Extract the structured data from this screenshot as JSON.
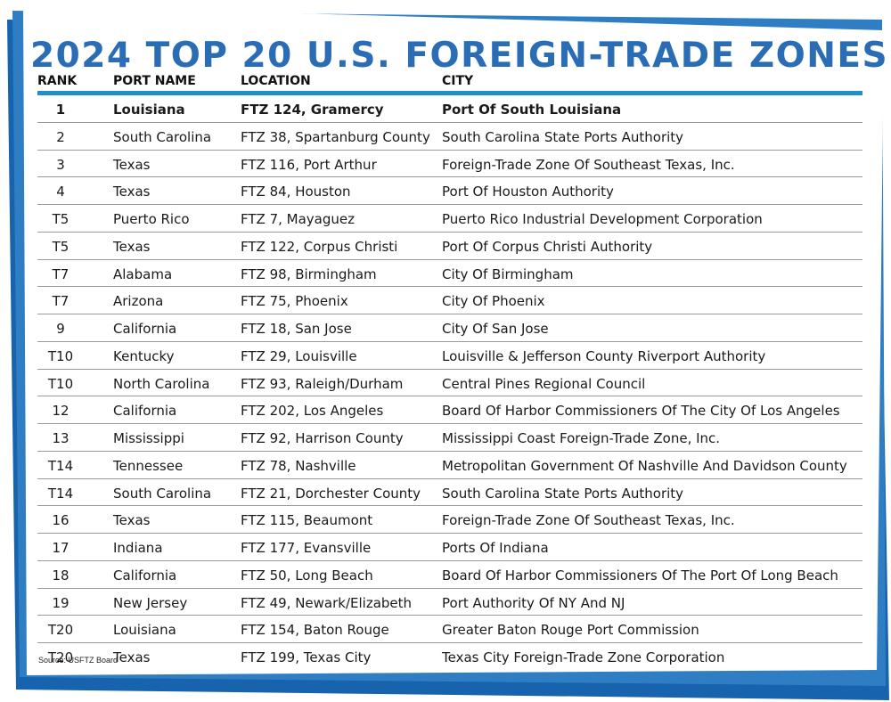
{
  "title": "2024 TOP 20 U.S. FOREIGN-TRADE ZONES",
  "colors": {
    "title": "#2a6db5",
    "frame_dark": "#1763ad",
    "frame_mid": "#2f7ec4",
    "header_rule": "#1f8fc4"
  },
  "table": {
    "headers": {
      "rank": "RANK",
      "port": "PORT NAME",
      "location": "LOCATION",
      "city": "CITY"
    },
    "rows": [
      {
        "rank": "1",
        "port": "Louisiana",
        "location": "FTZ 124, Gramercy",
        "city": "Port Of South Louisiana"
      },
      {
        "rank": "2",
        "port": "South Carolina",
        "location": "FTZ 38, Spartanburg County",
        "city": "South Carolina State Ports Authority"
      },
      {
        "rank": "3",
        "port": "Texas",
        "location": "FTZ 116, Port Arthur",
        "city": "Foreign-Trade Zone Of Southeast Texas, Inc."
      },
      {
        "rank": "4",
        "port": "Texas",
        "location": "FTZ 84, Houston",
        "city": "Port Of Houston Authority"
      },
      {
        "rank": "T5",
        "port": "Puerto Rico",
        "location": "FTZ 7, Mayaguez",
        "city": "Puerto Rico Industrial Development Corporation"
      },
      {
        "rank": "T5",
        "port": "Texas",
        "location": "FTZ 122, Corpus Christi",
        "city": "Port Of Corpus Christi Authority"
      },
      {
        "rank": "T7",
        "port": "Alabama",
        "location": "FTZ 98, Birmingham",
        "city": "City Of Birmingham"
      },
      {
        "rank": "T7",
        "port": "Arizona",
        "location": "FTZ 75, Phoenix",
        "city": "City Of Phoenix"
      },
      {
        "rank": "9",
        "port": "California",
        "location": "FTZ 18, San Jose",
        "city": "City Of San Jose"
      },
      {
        "rank": "T10",
        "port": "Kentucky",
        "location": "FTZ 29, Louisville",
        "city": "Louisville & Jefferson County Riverport Authority"
      },
      {
        "rank": "T10",
        "port": "North Carolina",
        "location": "FTZ 93, Raleigh/Durham",
        "city": "Central Pines Regional Council"
      },
      {
        "rank": "12",
        "port": "California",
        "location": "FTZ 202, Los Angeles",
        "city": "Board Of Harbor Commissioners Of The City Of Los Angeles"
      },
      {
        "rank": "13",
        "port": "Mississippi",
        "location": "FTZ 92, Harrison County",
        "city": "Mississippi Coast Foreign-Trade Zone, Inc."
      },
      {
        "rank": "T14",
        "port": "Tennessee",
        "location": "FTZ 78, Nashville",
        "city": "Metropolitan Government Of Nashville And Davidson County"
      },
      {
        "rank": "T14",
        "port": "South Carolina",
        "location": "FTZ 21, Dorchester County",
        "city": "South Carolina State Ports Authority"
      },
      {
        "rank": "16",
        "port": "Texas",
        "location": "FTZ 115, Beaumont",
        "city": "Foreign-Trade Zone Of Southeast Texas, Inc."
      },
      {
        "rank": "17",
        "port": "Indiana",
        "location": "FTZ 177, Evansville",
        "city": "Ports Of Indiana"
      },
      {
        "rank": "18",
        "port": "California",
        "location": "FTZ 50, Long Beach",
        "city": "Board Of Harbor Commissioners Of The Port Of Long Beach"
      },
      {
        "rank": "19",
        "port": "New Jersey",
        "location": "FTZ 49, Newark/Elizabeth",
        "city": "Port Authority Of NY And NJ"
      },
      {
        "rank": "T20",
        "port": "Louisiana",
        "location": "FTZ 154, Baton Rouge",
        "city": "Greater Baton Rouge Port Commission"
      },
      {
        "rank": "T20",
        "port": "Texas",
        "location": "FTZ 199, Texas City",
        "city": "Texas City Foreign-Trade Zone Corporation"
      }
    ]
  },
  "source": "Source: USFTZ Board"
}
